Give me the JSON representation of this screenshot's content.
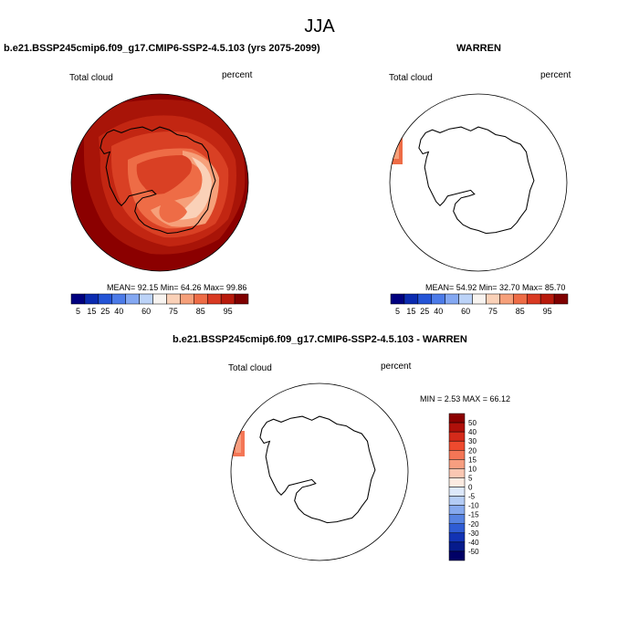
{
  "super_title": "JJA",
  "colors": {
    "dark_red": "#8B0000",
    "red": "#B71C0C",
    "ocean_base": "#A01206"
  },
  "panels": [
    {
      "title": "b.e21.BSSP245cmip6.f09_g17.CMIP6-SSP2-4.5.103 (yrs 2075-2099)",
      "variable": "Total cloud",
      "units": "percent",
      "stats": "MEAN=  92.15  Min=  64.26  Max=  99.86"
    },
    {
      "title": "WARREN",
      "variable": "Total cloud",
      "units": "percent",
      "stats": "MEAN=  54.92  Min=  32.70  Max=  85.70"
    },
    {
      "title": "b.e21.BSSP245cmip6.f09_g17.CMIP6-SSP2-4.5.103 - WARREN",
      "variable": "Total cloud",
      "units": "percent",
      "stats": "MIN =  2.53 MAX =  66.12"
    }
  ],
  "colorbar_abs": {
    "labels": [
      "5",
      "15",
      "25",
      "40",
      "60",
      "75",
      "85",
      "95"
    ],
    "colors": [
      "#00007F",
      "#0B2BB0",
      "#2454D6",
      "#4C7BE8",
      "#84A8F2",
      "#BCD3F8",
      "#F8F4F0",
      "#FAD1B8",
      "#F6A07A",
      "#EE6C46",
      "#D93A22",
      "#B81A0C",
      "#7F0000"
    ]
  },
  "colorbar_diff": {
    "labels": [
      "50",
      "40",
      "30",
      "20",
      "15",
      "10",
      "5",
      "0",
      "-5",
      "-10",
      "-15",
      "-20",
      "-30",
      "-40",
      "-50"
    ],
    "colors": [
      "#8B0000",
      "#B0100A",
      "#D42A1A",
      "#EE4A2E",
      "#F47656",
      "#F79E80",
      "#FAC7B2",
      "#FCEBE1",
      "#DDE8FA",
      "#B4CCF5",
      "#86A9EE",
      "#5783E2",
      "#2F5CD4",
      "#1233B4",
      "#061B8C",
      "#000066"
    ]
  }
}
